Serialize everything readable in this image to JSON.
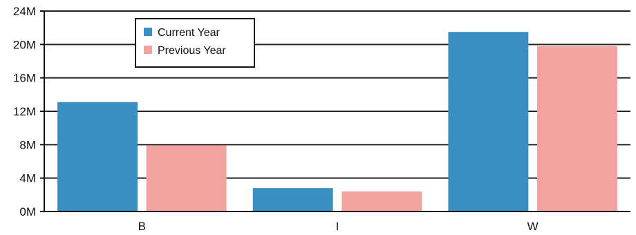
{
  "chart_data": {
    "type": "bar",
    "categories": [
      "B",
      "I",
      "W"
    ],
    "series": [
      {
        "name": "Current Year",
        "values": [
          13.1,
          2.8,
          21.5
        ],
        "color": "#3a8fc2"
      },
      {
        "name": "Previous Year",
        "values": [
          7.9,
          2.4,
          19.8
        ],
        "color": "#f2a3a0"
      }
    ],
    "y_unit_suffix": "M",
    "ylim": [
      0,
      24
    ],
    "yticks": [
      0,
      4,
      8,
      12,
      16,
      20,
      24
    ],
    "ytick_labels": [
      "0M",
      "4M",
      "8M",
      "12M",
      "16M",
      "20M",
      "24M"
    ],
    "grid": true,
    "legend_position": "top-left",
    "title": "",
    "xlabel": "",
    "ylabel": ""
  }
}
